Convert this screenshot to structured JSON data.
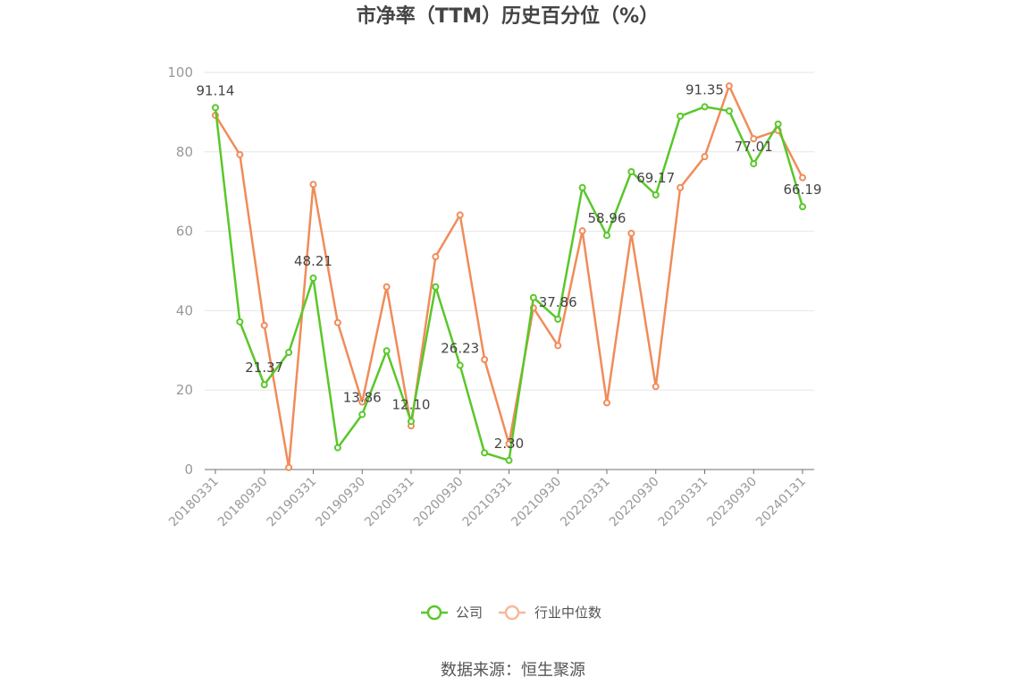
{
  "chart_data": {
    "type": "line",
    "title": "市净率（TTM）历史百分位（%）",
    "ylim": [
      0,
      100
    ],
    "yticks": [
      0,
      20,
      40,
      60,
      80,
      100
    ],
    "x": [
      "20180331",
      "20180630",
      "20180930",
      "20181231",
      "20190331",
      "20190630",
      "20190930",
      "20191231",
      "20200331",
      "20200630",
      "20200930",
      "20201231",
      "20210331",
      "20210630",
      "20210930",
      "20211231",
      "20220331",
      "20220630",
      "20220930",
      "20221231",
      "20230331",
      "20230630",
      "20230930",
      "20231231",
      "20240131"
    ],
    "xticks": [
      "20180331",
      "20180930",
      "20190331",
      "20190930",
      "20200331",
      "20200930",
      "20210331",
      "20210930",
      "20220331",
      "20220930",
      "20230331",
      "20230930",
      "20240131"
    ],
    "series": [
      {
        "name": "公司",
        "color": "#5ac72a",
        "values": [
          91.14,
          37.2,
          21.37,
          29.5,
          48.21,
          5.5,
          13.86,
          29.9,
          12.1,
          46.0,
          26.23,
          4.2,
          2.3,
          43.3,
          37.86,
          71.0,
          58.96,
          75.0,
          69.17,
          89.0,
          91.35,
          90.3,
          77.01,
          87.0,
          66.19
        ],
        "labels": {
          "0": "91.14",
          "2": "21.37",
          "4": "48.21",
          "6": "13.86",
          "8": "12.10",
          "10": "26.23",
          "12": "2.30",
          "14": "37.86",
          "16": "58.96",
          "18": "69.17",
          "20": "91.35",
          "22": "77.01",
          "24": "66.19"
        }
      },
      {
        "name": "行业中位数",
        "color": "#f08c5a",
        "values": [
          89.2,
          79.3,
          36.3,
          0.5,
          71.8,
          37.0,
          17.0,
          46.0,
          11.0,
          53.6,
          64.1,
          27.7,
          6.5,
          40.7,
          31.2,
          60.1,
          16.8,
          59.5,
          20.9,
          71.0,
          78.8,
          96.6,
          83.3,
          85.4,
          73.5
        ]
      }
    ],
    "legend": "bottom-center",
    "grid": true
  },
  "source": "数据来源：恒生聚源"
}
